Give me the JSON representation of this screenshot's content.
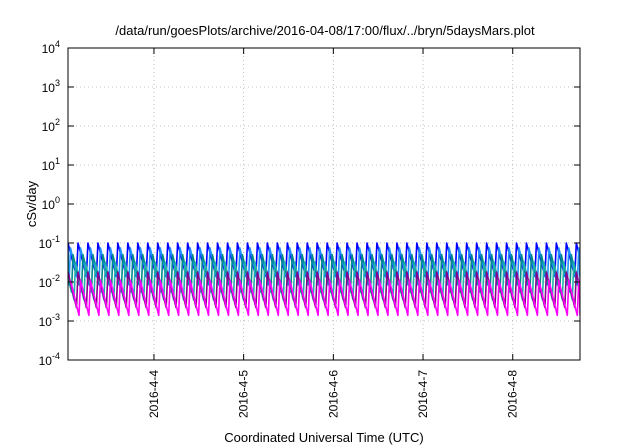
{
  "chart_data": {
    "type": "line",
    "title": "/data/run/goesPlots/archive/2016-04-08/17:00/flux/../bryn/5daysMars.plot",
    "xlabel": "Coordinated Universal Time (UTC)",
    "ylabel": "cSv/day",
    "yscale": "log",
    "ylim": [
      0.0001,
      10000
    ],
    "xlim": [
      "2016-04-03 01:00",
      "2016-04-08 18:00"
    ],
    "grid": true,
    "y_ticks": [
      {
        "base": "10",
        "exp": "4"
      },
      {
        "base": "10",
        "exp": "3"
      },
      {
        "base": "10",
        "exp": "2"
      },
      {
        "base": "10",
        "exp": "1"
      },
      {
        "base": "10",
        "exp": "0"
      },
      {
        "base": "10",
        "exp": "-1"
      },
      {
        "base": "10",
        "exp": "-2"
      },
      {
        "base": "10",
        "exp": "-3"
      },
      {
        "base": "10",
        "exp": "-4"
      }
    ],
    "x_ticks": [
      "2016-4-4",
      "2016-4-5",
      "2016-4-6",
      "2016-4-7",
      "2016-4-8"
    ],
    "series_pattern": {
      "cycles_per_day": 9,
      "colors": [
        "#0000ff",
        "#1e90ff",
        "#008b8b",
        "#20b2aa",
        "#8b008b",
        "#ff00ff"
      ],
      "peak_values": [
        0.1,
        0.075,
        0.05,
        0.032,
        0.018,
        0.011
      ],
      "trough_values": [
        0.014,
        0.0085,
        0.0055,
        0.0035,
        0.0022,
        0.0014
      ]
    }
  }
}
